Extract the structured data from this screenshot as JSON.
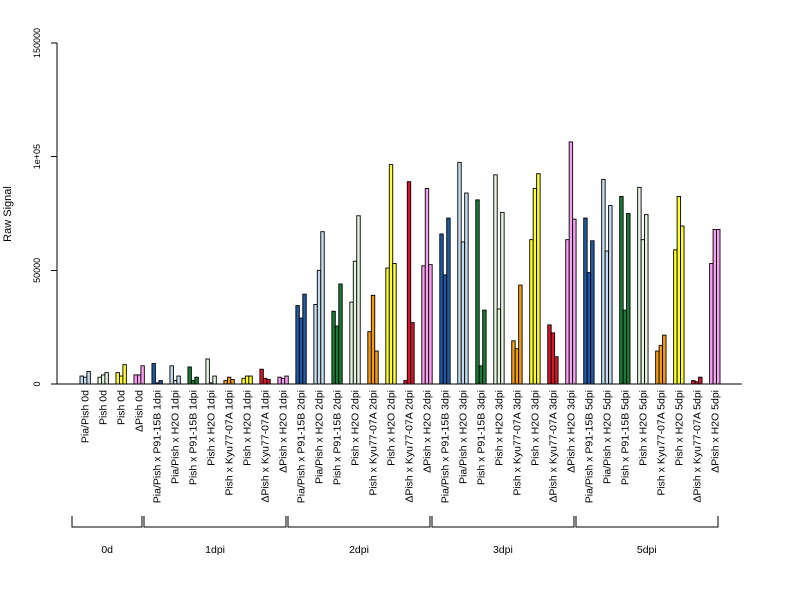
{
  "chart_data": {
    "type": "bar",
    "title": "",
    "xlabel": "",
    "ylabel": "Raw Signal",
    "ylim": [
      0,
      150000
    ],
    "yticks": [
      {
        "value": 0,
        "label": "0"
      },
      {
        "value": 50000,
        "label": "50000"
      },
      {
        "value": 100000,
        "label": "1e+05"
      },
      {
        "value": 150000,
        "label": "150000"
      }
    ],
    "grid": false,
    "legend": "none",
    "groups": [
      {
        "label": "0d",
        "categories": [
          {
            "label": "Pia/Pish 0d",
            "color": "#c6dbef",
            "values": [
              3500,
              3000,
              5500
            ]
          },
          {
            "label": "Pish 0d",
            "color": "#e5f5e0",
            "values": [
              3000,
              4000,
              5000
            ]
          },
          {
            "label": "Pish 0d",
            "color": "#ffff33",
            "values": [
              5000,
              3500,
              8500
            ]
          },
          {
            "label": "ΔPish 0d",
            "color": "#f8a0f0",
            "values": [
              4000,
              4000,
              8000
            ]
          }
        ]
      },
      {
        "label": "1dpi",
        "categories": [
          {
            "label": "Pia/Pish x P91-15B 1dpi",
            "color": "#1f5aa6",
            "values": [
              9000,
              500,
              1500
            ]
          },
          {
            "label": "Pia/Pish x H2O 1dpi",
            "color": "#c6dbef",
            "values": [
              8000,
              1500,
              3500
            ]
          },
          {
            "label": "Pish x P91-15B 1dpi",
            "color": "#1b7a34",
            "values": [
              7500,
              1500,
              3000
            ]
          },
          {
            "label": "Pish x H2O 1dpi",
            "color": "#e5f5e0",
            "values": [
              11000,
              500,
              3500
            ]
          },
          {
            "label": "Pish x Kyu77-07A 1dpi",
            "color": "#f39c12",
            "values": [
              1500,
              3000,
              2000
            ]
          },
          {
            "label": "Pish x H2O 1dpi",
            "color": "#ffff33",
            "values": [
              2500,
              3500,
              3500
            ]
          },
          {
            "label": "ΔPish x Kyu77-07A 1dpi",
            "color": "#d7152a",
            "values": [
              6500,
              2500,
              2000
            ]
          },
          {
            "label": "ΔPish x H2O 1dpi",
            "color": "#f8a0f0",
            "values": [
              3000,
              2500,
              3500
            ]
          }
        ]
      },
      {
        "label": "2dpi",
        "categories": [
          {
            "label": "Pia/Pish x P91-15B 2dpi",
            "color": "#1f5aa6",
            "values": [
              34500,
              29000,
              39500
            ]
          },
          {
            "label": "Pia/Pish x H2O 2dpi",
            "color": "#c6dbef",
            "values": [
              35000,
              50000,
              67000
            ]
          },
          {
            "label": "Pish x P91-15B 2dpi",
            "color": "#1b7a34",
            "values": [
              32000,
              25500,
              44000
            ]
          },
          {
            "label": "Pish x H2O 2dpi",
            "color": "#e5f5e0",
            "values": [
              36000,
              54000,
              74000
            ]
          },
          {
            "label": "Pish x Kyu77-07A 2dpi",
            "color": "#f39c12",
            "values": [
              23000,
              39000,
              14500
            ]
          },
          {
            "label": "Pish x H2O 2dpi",
            "color": "#ffff33",
            "values": [
              51000,
              96500,
              53000
            ]
          },
          {
            "label": "ΔPish x Kyu77-07A 2dpi",
            "color": "#d7152a",
            "values": [
              1500,
              89000,
              27000
            ]
          },
          {
            "label": "ΔPish x H2O 2dpi",
            "color": "#f8a0f0",
            "values": [
              52000,
              86000,
              52500
            ]
          }
        ]
      },
      {
        "label": "3dpi",
        "categories": [
          {
            "label": "Pia/Pish x P91-15B 3dpi",
            "color": "#1f5aa6",
            "values": [
              66000,
              48000,
              73000
            ]
          },
          {
            "label": "Pia/Pish x H2O 3dpi",
            "color": "#c6dbef",
            "values": [
              97500,
              62500,
              84000
            ]
          },
          {
            "label": "Pish x P91-15B 3dpi",
            "color": "#1b7a34",
            "values": [
              81000,
              8000,
              32500
            ]
          },
          {
            "label": "Pish x H2O 3dpi",
            "color": "#e5f5e0",
            "values": [
              92000,
              33000,
              75500
            ]
          },
          {
            "label": "Pish x Kyu77-07A 3dpi",
            "color": "#f39c12",
            "values": [
              19000,
              15500,
              43500
            ]
          },
          {
            "label": "Pish x H2O 3dpi",
            "color": "#ffff33",
            "values": [
              63500,
              86000,
              92500
            ]
          },
          {
            "label": "ΔPish x Kyu77-07A 3dpi",
            "color": "#d7152a",
            "values": [
              26000,
              22500,
              12000
            ]
          },
          {
            "label": "ΔPish x H2O 3dpi",
            "color": "#f8a0f0",
            "values": [
              63500,
              106500,
              72500
            ]
          }
        ]
      },
      {
        "label": "5dpi",
        "categories": [
          {
            "label": "Pia/Pish x P91-15B 5dpi",
            "color": "#1f5aa6",
            "values": [
              73000,
              49000,
              63000
            ]
          },
          {
            "label": "Pia/Pish x H2O 5dpi",
            "color": "#c6dbef",
            "values": [
              90000,
              58500,
              78500
            ]
          },
          {
            "label": "Pish x P91-15B 5dpi",
            "color": "#1b7a34",
            "values": [
              82500,
              32500,
              75000
            ]
          },
          {
            "label": "Pish x H2O 5dpi",
            "color": "#e5f5e0",
            "values": [
              86500,
              63500,
              74500
            ]
          },
          {
            "label": "Pish x Kyu77-07A 5dpi",
            "color": "#f39c12",
            "values": [
              14500,
              17000,
              21500
            ]
          },
          {
            "label": "Pish x H2O 5dpi",
            "color": "#ffff33",
            "values": [
              59000,
              82500,
              69500
            ]
          },
          {
            "label": "ΔPish x Kyu77-07A 5dpi",
            "color": "#d7152a",
            "values": [
              1500,
              1000,
              3000
            ]
          },
          {
            "label": "ΔPish x H2O 5dpi",
            "color": "#f8a0f0",
            "values": [
              53000,
              68000,
              68000
            ]
          }
        ]
      }
    ]
  }
}
